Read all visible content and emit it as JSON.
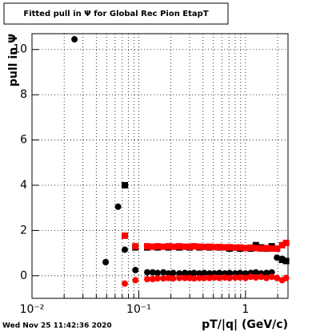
{
  "chart_data": {
    "type": "scatter",
    "title": "Fitted pull in  Ψ  for Global Rec Pion EtapT",
    "x_label": "pT/|q| (GeV/c)",
    "y_label": "pull in Ψ",
    "timestamp": "Wed Nov 25 11:42:36 2020",
    "xscale": "log",
    "grid": true,
    "xlim": [
      0.01,
      2.5
    ],
    "ylim": [
      -1,
      10.7
    ],
    "xticks": [
      {
        "value": 0.01,
        "label": "10⁻²"
      },
      {
        "value": 0.1,
        "label": "10⁻¹"
      },
      1
    ],
    "xminorticks": [
      0.02,
      0.03,
      0.04,
      0.05,
      0.06,
      0.07,
      0.08,
      0.09,
      0.2,
      0.3,
      0.4,
      0.5,
      0.6,
      0.7,
      0.8,
      0.9,
      2
    ],
    "yticks": [
      0,
      2,
      4,
      6,
      8,
      10
    ],
    "series": [
      {
        "marker": "circle",
        "color": "#000000",
        "x": [
          0.025,
          0.049,
          0.064,
          0.074,
          0.093,
          0.12,
          0.135,
          0.15,
          0.17,
          0.19,
          0.21,
          0.24,
          0.27,
          0.3,
          0.33,
          0.37,
          0.41,
          0.46,
          0.51,
          0.57,
          0.64,
          0.71,
          0.8,
          0.89,
          1.0,
          1.12,
          1.25,
          1.4,
          1.57,
          1.76,
          1.97,
          2.2,
          2.4
        ],
        "values": [
          10.45,
          0.6,
          3.05,
          1.15,
          0.25,
          0.15,
          0.15,
          0.12,
          0.15,
          0.1,
          0.12,
          0.1,
          0.12,
          0.1,
          0.12,
          0.1,
          0.12,
          0.1,
          0.1,
          0.12,
          0.1,
          0.12,
          0.1,
          0.12,
          0.1,
          0.12,
          0.15,
          0.1,
          0.12,
          0.15,
          0.8,
          0.75,
          0.65
        ]
      },
      {
        "marker": "square",
        "color": "#000000",
        "x": [
          0.074,
          0.093,
          0.12,
          0.15,
          0.19,
          0.24,
          0.3,
          0.37,
          0.46,
          0.57,
          0.71,
          0.89,
          1.12,
          1.25,
          1.4,
          1.57,
          1.76,
          1.97,
          2.2,
          2.4
        ],
        "values": [
          4.0,
          1.25,
          1.25,
          1.25,
          1.25,
          1.25,
          1.25,
          1.25,
          1.25,
          1.25,
          1.2,
          1.2,
          1.2,
          1.35,
          1.25,
          1.2,
          1.3,
          1.2,
          0.7,
          0.65
        ]
      },
      {
        "marker": "square",
        "color": "#ff0000",
        "x": [
          0.074,
          0.093,
          0.12,
          0.135,
          0.15,
          0.17,
          0.19,
          0.21,
          0.24,
          0.27,
          0.3,
          0.33,
          0.37,
          0.41,
          0.46,
          0.51,
          0.57,
          0.64,
          0.71,
          0.8,
          0.89,
          1.0,
          1.12,
          1.25,
          1.4,
          1.57,
          1.76,
          1.97,
          2.2,
          2.4
        ],
        "values": [
          1.77,
          1.3,
          1.3,
          1.28,
          1.3,
          1.28,
          1.3,
          1.28,
          1.3,
          1.28,
          1.28,
          1.3,
          1.28,
          1.27,
          1.28,
          1.26,
          1.27,
          1.25,
          1.26,
          1.24,
          1.25,
          1.22,
          1.24,
          1.22,
          1.2,
          1.22,
          1.2,
          1.2,
          1.35,
          1.45
        ]
      },
      {
        "marker": "circle",
        "color": "#ff0000",
        "x": [
          0.074,
          0.093,
          0.12,
          0.135,
          0.15,
          0.17,
          0.19,
          0.21,
          0.24,
          0.27,
          0.3,
          0.33,
          0.37,
          0.41,
          0.46,
          0.51,
          0.57,
          0.64,
          0.71,
          0.8,
          0.89,
          1.0,
          1.12,
          1.25,
          1.4,
          1.57,
          1.76,
          1.97,
          2.2,
          2.4
        ],
        "values": [
          -0.35,
          -0.2,
          -0.15,
          -0.15,
          -0.12,
          -0.12,
          -0.1,
          -0.12,
          -0.1,
          -0.1,
          -0.1,
          -0.12,
          -0.1,
          -0.1,
          -0.1,
          -0.08,
          -0.1,
          -0.08,
          -0.1,
          -0.08,
          -0.08,
          -0.1,
          -0.05,
          -0.08,
          -0.05,
          -0.1,
          -0.05,
          -0.1,
          -0.2,
          -0.1
        ]
      }
    ]
  }
}
